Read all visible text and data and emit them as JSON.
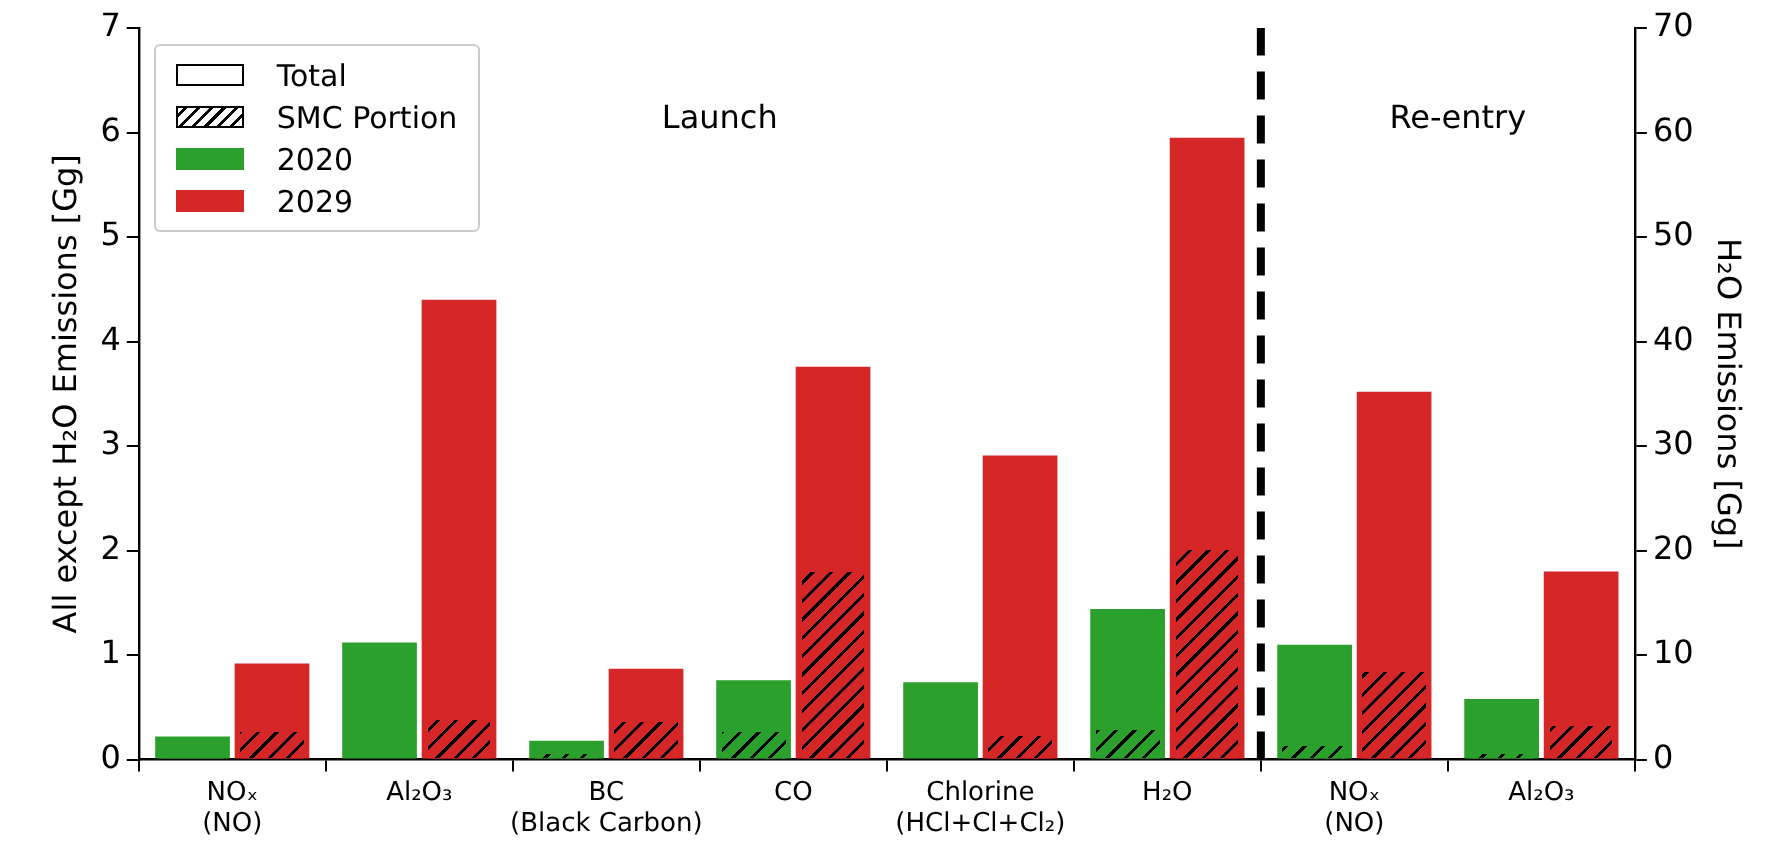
{
  "chart_data": {
    "type": "bar",
    "ylabel": "All except H₂O Emissions [Gg]",
    "y2label": "H₂O Emissions [Gg]",
    "categories": [
      "NOₓ\n(NO)",
      "Al₂O₃",
      "BC\n(Black Carbon)",
      "CO",
      "Chlorine\n(HCl+Cl+Cl₂)",
      "H₂O",
      "NOₓ\n(NO)",
      "Al₂O₃"
    ],
    "series": [
      {
        "name": "2020",
        "color": "#2ca02c",
        "values": [
          0.22,
          1.12,
          0.18,
          0.76,
          0.74,
          null,
          1.1,
          0.58
        ]
      },
      {
        "color": "#2ca02c",
        "values": [
          0.03,
          0,
          0.05,
          0.26,
          0,
          null,
          0.13,
          0.05
        ]
      },
      {
        "name": "2029",
        "color": "#d62728",
        "values": [
          0.92,
          4.4,
          0.87,
          3.76,
          2.91,
          null,
          3.52,
          1.8
        ]
      },
      {
        "color": "#d62728",
        "values": [
          0.26,
          0.37,
          0.36,
          1.79,
          0.23,
          null,
          0.84,
          0.32
        ]
      },
      {
        "axis": "y2",
        "color": "#2ca02c",
        "values": [
          null,
          null,
          null,
          null,
          null,
          14.4,
          null,
          null
        ]
      },
      {
        "axis": "y2",
        "color": "#2ca02c",
        "values": [
          null,
          null,
          null,
          null,
          null,
          2.9,
          null,
          null
        ]
      },
      {
        "axis": "y2",
        "color": "#d62728",
        "values": [
          null,
          null,
          null,
          null,
          null,
          59.5,
          null,
          null
        ]
      },
      {
        "axis": "y2",
        "color": "#d62728",
        "values": [
          null,
          null,
          null,
          null,
          null,
          20,
          null,
          null
        ]
      }
    ],
    "ylim": [
      0,
      7
    ],
    "yticks": [
      0,
      1,
      2,
      3,
      4,
      5,
      6,
      7
    ],
    "y2lim": [
      0,
      70
    ],
    "y2ticks": [
      0,
      10,
      20,
      30,
      40,
      50,
      60,
      70
    ],
    "annotations": [
      "Launch",
      "Re-entry",
      "Total",
      "SMC Portion"
    ],
    "legend": "top left",
    "grid": false
  }
}
